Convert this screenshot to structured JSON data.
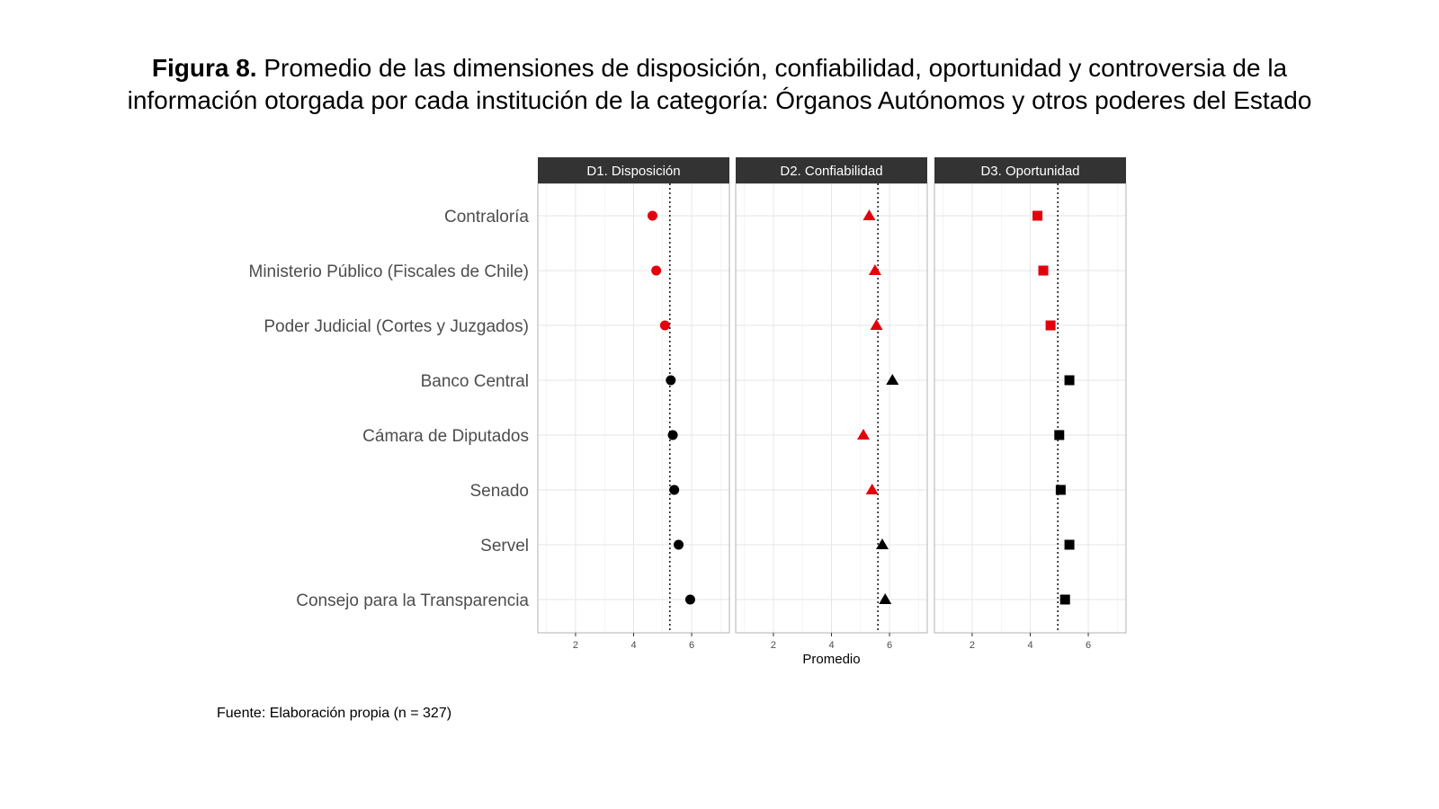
{
  "figure": {
    "label": "Figura 8.",
    "title_line1": "Promedio de las dimensiones de disposición, confiabilidad, oportunidad y controversia de la",
    "title_line2": "información otorgada por cada institución de la categoría: Órganos Autónomos y otros poderes del Estado"
  },
  "source": "Fuente: Elaboración propia (n = 327)",
  "colors": {
    "below_mean": "#e3000b",
    "above_mean": "#000000",
    "strip_bg": "#333333",
    "grid": "#e6e6e6",
    "panel_border": "#b3b3b3"
  },
  "chart_data": {
    "type": "scatter",
    "xlabel": "Promedio",
    "xlim": [
      0.7,
      7.3
    ],
    "xticks": [
      2,
      4,
      6
    ],
    "categories": [
      "Contraloría",
      "Ministerio Público (Fiscales de Chile)",
      "Poder Judicial (Cortes y Juzgados)",
      "Banco Central",
      "Cámara de Diputados",
      "Senado",
      "Servel",
      "Consejo para la Transparencia"
    ],
    "panels": [
      {
        "name": "D1. Disposición",
        "shape": "circle",
        "mean": 5.25,
        "values": [
          4.65,
          4.78,
          5.08,
          5.28,
          5.35,
          5.4,
          5.55,
          5.95
        ],
        "highlight": [
          true,
          true,
          true,
          false,
          false,
          false,
          false,
          false
        ]
      },
      {
        "name": "D2. Confiabilidad",
        "shape": "triangle",
        "mean": 5.6,
        "values": [
          5.3,
          5.5,
          5.55,
          6.1,
          5.1,
          5.4,
          5.75,
          5.85
        ],
        "highlight": [
          true,
          true,
          true,
          false,
          true,
          true,
          false,
          false
        ]
      },
      {
        "name": "D3. Oportunidad",
        "shape": "square",
        "mean": 4.95,
        "values": [
          4.25,
          4.45,
          4.7,
          5.35,
          5.0,
          5.05,
          5.35,
          5.2
        ],
        "highlight": [
          true,
          true,
          true,
          false,
          false,
          false,
          false,
          false
        ]
      }
    ]
  }
}
